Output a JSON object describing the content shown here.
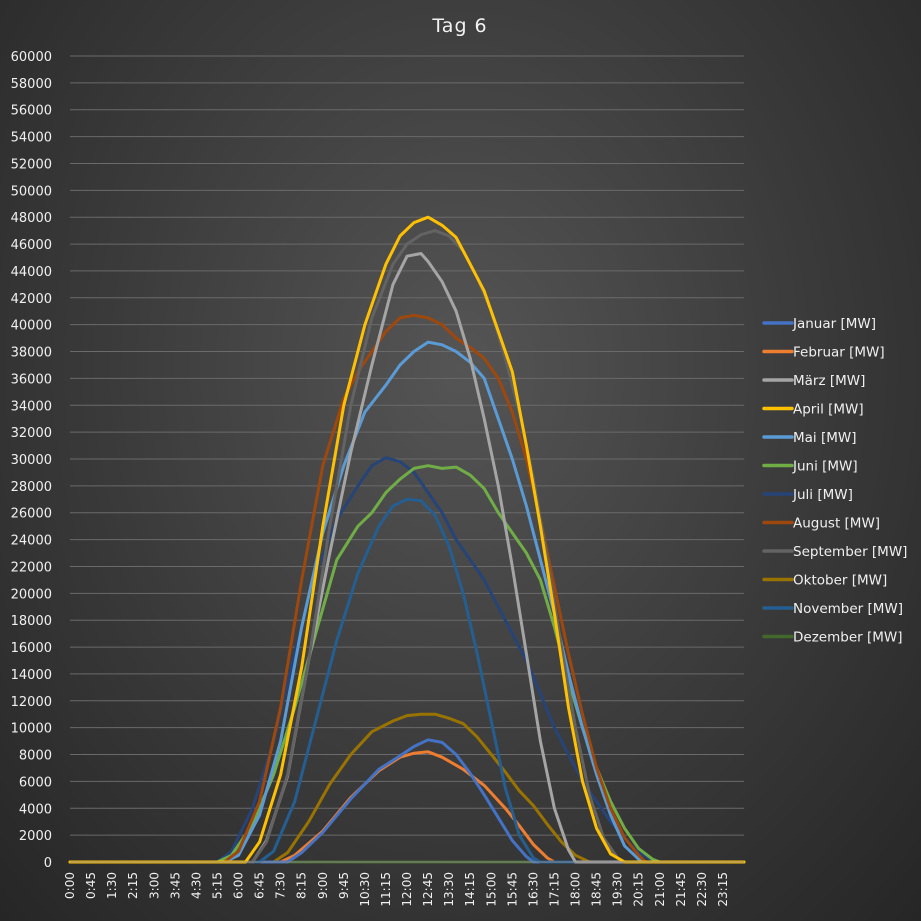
{
  "chart_data": {
    "type": "line",
    "title": "Tag 6",
    "xlabel": "",
    "ylabel": "",
    "ylim": [
      0,
      60000
    ],
    "yticks": [
      0,
      2000,
      4000,
      6000,
      8000,
      10000,
      12000,
      14000,
      16000,
      18000,
      20000,
      22000,
      24000,
      26000,
      28000,
      30000,
      32000,
      34000,
      36000,
      38000,
      40000,
      42000,
      44000,
      46000,
      48000,
      50000,
      52000,
      54000,
      56000,
      58000,
      60000
    ],
    "xtick_labels": [
      "0:00",
      "0:45",
      "1:30",
      "2:15",
      "3:00",
      "3:45",
      "4:30",
      "5:15",
      "6:00",
      "6:45",
      "7:30",
      "8:15",
      "9:00",
      "9:45",
      "10:30",
      "11:15",
      "12:00",
      "12:45",
      "13:30",
      "14:15",
      "15:00",
      "15:45",
      "16:30",
      "17:15",
      "18:00",
      "18:45",
      "19:30",
      "20:15",
      "21:00",
      "21:45",
      "22:30",
      "23:15"
    ],
    "x_hours_range": [
      0,
      24
    ],
    "grid": true,
    "legend_position": "right",
    "series": [
      {
        "name": "Januar [MW]",
        "color": "#4472c4",
        "points": [
          [
            0,
            0
          ],
          [
            7.75,
            0
          ],
          [
            8.25,
            700
          ],
          [
            9,
            2200
          ],
          [
            10,
            4700
          ],
          [
            11,
            6900
          ],
          [
            11.75,
            7900
          ],
          [
            12.25,
            8600
          ],
          [
            12.75,
            9100
          ],
          [
            13.25,
            8900
          ],
          [
            13.75,
            8000
          ],
          [
            14.25,
            6600
          ],
          [
            14.75,
            5000
          ],
          [
            15.25,
            3300
          ],
          [
            15.75,
            1600
          ],
          [
            16.25,
            400
          ],
          [
            16.5,
            0
          ],
          [
            24,
            0
          ]
        ]
      },
      {
        "name": "Februar [MW]",
        "color": "#ed7d31",
        "points": [
          [
            0,
            0
          ],
          [
            7.5,
            0
          ],
          [
            8,
            500
          ],
          [
            9,
            2300
          ],
          [
            10,
            4800
          ],
          [
            11,
            6800
          ],
          [
            11.75,
            7800
          ],
          [
            12.25,
            8100
          ],
          [
            12.75,
            8200
          ],
          [
            13.25,
            7800
          ],
          [
            14,
            6900
          ],
          [
            14.75,
            5700
          ],
          [
            15.5,
            4000
          ],
          [
            16,
            2700
          ],
          [
            16.5,
            1300
          ],
          [
            17,
            300
          ],
          [
            17.25,
            0
          ],
          [
            24,
            0
          ]
        ]
      },
      {
        "name": "März [MW]",
        "color": "#a5a5a5",
        "points": [
          [
            0,
            0
          ],
          [
            6.5,
            0
          ],
          [
            7,
            1600
          ],
          [
            7.75,
            6400
          ],
          [
            8.5,
            15000
          ],
          [
            9.25,
            23000
          ],
          [
            10,
            30500
          ],
          [
            10.75,
            37000
          ],
          [
            11.5,
            43000
          ],
          [
            12,
            45100
          ],
          [
            12.5,
            45300
          ],
          [
            12.75,
            44700
          ],
          [
            13.25,
            43200
          ],
          [
            13.75,
            41000
          ],
          [
            14.25,
            37500
          ],
          [
            14.75,
            33000
          ],
          [
            15.25,
            28000
          ],
          [
            15.75,
            22000
          ],
          [
            16.25,
            15500
          ],
          [
            16.75,
            9000
          ],
          [
            17.25,
            4000
          ],
          [
            17.75,
            900
          ],
          [
            18,
            0
          ],
          [
            24,
            0
          ]
        ]
      },
      {
        "name": "April [MW]",
        "color": "#ffc000",
        "points": [
          [
            0,
            0
          ],
          [
            6.25,
            0
          ],
          [
            6.75,
            1500
          ],
          [
            7.5,
            6500
          ],
          [
            8.25,
            14500
          ],
          [
            9,
            25000
          ],
          [
            9.75,
            34000
          ],
          [
            10.5,
            40000
          ],
          [
            11.25,
            44500
          ],
          [
            11.75,
            46600
          ],
          [
            12.25,
            47600
          ],
          [
            12.75,
            48000
          ],
          [
            13.25,
            47400
          ],
          [
            13.75,
            46500
          ],
          [
            14.25,
            44500
          ],
          [
            14.75,
            42500
          ],
          [
            15.25,
            39500
          ],
          [
            15.75,
            36500
          ],
          [
            16.25,
            31000
          ],
          [
            16.75,
            25000
          ],
          [
            17.25,
            18500
          ],
          [
            17.75,
            11500
          ],
          [
            18.25,
            6000
          ],
          [
            18.75,
            2500
          ],
          [
            19.25,
            600
          ],
          [
            19.75,
            0
          ],
          [
            24,
            0
          ]
        ]
      },
      {
        "name": "Mai [MW]",
        "color": "#5b9bd5",
        "points": [
          [
            0,
            0
          ],
          [
            5.5,
            0
          ],
          [
            6,
            500
          ],
          [
            6.75,
            3500
          ],
          [
            7.5,
            9000
          ],
          [
            8.25,
            17500
          ],
          [
            9,
            24500
          ],
          [
            9.75,
            29500
          ],
          [
            10.5,
            33500
          ],
          [
            11.25,
            35500
          ],
          [
            11.75,
            37000
          ],
          [
            12.25,
            38000
          ],
          [
            12.75,
            38700
          ],
          [
            13.25,
            38500
          ],
          [
            13.75,
            38000
          ],
          [
            14.25,
            37200
          ],
          [
            14.75,
            36000
          ],
          [
            15.25,
            33000
          ],
          [
            15.75,
            30000
          ],
          [
            16.25,
            26500
          ],
          [
            16.75,
            22500
          ],
          [
            17.25,
            18500
          ],
          [
            17.75,
            14000
          ],
          [
            18.25,
            10000
          ],
          [
            18.75,
            6500
          ],
          [
            19.25,
            3500
          ],
          [
            19.75,
            1200
          ],
          [
            20.25,
            200
          ],
          [
            20.5,
            0
          ],
          [
            24,
            0
          ]
        ]
      },
      {
        "name": "Juni [MW]",
        "color": "#70ad47",
        "points": [
          [
            0,
            0
          ],
          [
            5.25,
            0
          ],
          [
            5.75,
            500
          ],
          [
            6.5,
            2800
          ],
          [
            7.25,
            6500
          ],
          [
            8,
            11500
          ],
          [
            8.75,
            17000
          ],
          [
            9.5,
            22500
          ],
          [
            10.25,
            25000
          ],
          [
            10.75,
            26000
          ],
          [
            11.25,
            27500
          ],
          [
            11.75,
            28500
          ],
          [
            12.25,
            29300
          ],
          [
            12.75,
            29500
          ],
          [
            13.25,
            29300
          ],
          [
            13.75,
            29400
          ],
          [
            14.25,
            28800
          ],
          [
            14.75,
            27800
          ],
          [
            15.25,
            26000
          ],
          [
            15.75,
            24500
          ],
          [
            16.25,
            23000
          ],
          [
            16.75,
            21000
          ],
          [
            17.25,
            17500
          ],
          [
            17.75,
            13500
          ],
          [
            18.25,
            10000
          ],
          [
            18.75,
            7000
          ],
          [
            19.25,
            4500
          ],
          [
            19.75,
            2500
          ],
          [
            20.25,
            1000
          ],
          [
            20.75,
            200
          ],
          [
            21,
            0
          ],
          [
            24,
            0
          ]
        ]
      },
      {
        "name": "Juli [MW]",
        "color": "#264478",
        "points": [
          [
            0,
            0
          ],
          [
            5.25,
            0
          ],
          [
            5.75,
            800
          ],
          [
            6.5,
            4000
          ],
          [
            7.25,
            9000
          ],
          [
            8,
            15500
          ],
          [
            8.75,
            21500
          ],
          [
            9.5,
            25500
          ],
          [
            10.25,
            28000
          ],
          [
            10.75,
            29500
          ],
          [
            11.25,
            30100
          ],
          [
            11.75,
            29800
          ],
          [
            12.25,
            29000
          ],
          [
            12.75,
            27500
          ],
          [
            13.25,
            26000
          ],
          [
            13.75,
            24000
          ],
          [
            14.25,
            22500
          ],
          [
            14.75,
            21000
          ],
          [
            15.25,
            19000
          ],
          [
            15.75,
            17000
          ],
          [
            16.25,
            15000
          ],
          [
            16.75,
            12500
          ],
          [
            17.25,
            10000
          ],
          [
            17.75,
            8000
          ],
          [
            18.25,
            6000
          ],
          [
            18.75,
            4500
          ],
          [
            19.25,
            3000
          ],
          [
            19.75,
            1800
          ],
          [
            20.25,
            700
          ],
          [
            20.75,
            100
          ],
          [
            21,
            0
          ],
          [
            24,
            0
          ]
        ]
      },
      {
        "name": "August [MW]",
        "color": "#9e480e",
        "points": [
          [
            0,
            0
          ],
          [
            5.5,
            0
          ],
          [
            6,
            800
          ],
          [
            6.75,
            4500
          ],
          [
            7.5,
            11500
          ],
          [
            8.25,
            21000
          ],
          [
            9,
            29500
          ],
          [
            9.75,
            34500
          ],
          [
            10.25,
            36500
          ],
          [
            10.75,
            38000
          ],
          [
            11.25,
            39500
          ],
          [
            11.75,
            40500
          ],
          [
            12.25,
            40700
          ],
          [
            12.75,
            40500
          ],
          [
            13.25,
            40000
          ],
          [
            13.75,
            39000
          ],
          [
            14.25,
            38300
          ],
          [
            14.75,
            37500
          ],
          [
            15.25,
            36000
          ],
          [
            15.75,
            33500
          ],
          [
            16.25,
            30000
          ],
          [
            16.75,
            25500
          ],
          [
            17.25,
            20500
          ],
          [
            17.75,
            15500
          ],
          [
            18.25,
            11000
          ],
          [
            18.75,
            7000
          ],
          [
            19.25,
            4000
          ],
          [
            19.75,
            1800
          ],
          [
            20.25,
            500
          ],
          [
            20.5,
            0
          ],
          [
            24,
            0
          ]
        ]
      },
      {
        "name": "September [MW]",
        "color": "#636363",
        "points": [
          [
            0,
            0
          ],
          [
            6.5,
            0
          ],
          [
            7,
            1500
          ],
          [
            7.75,
            6500
          ],
          [
            8.5,
            15000
          ],
          [
            9.25,
            25000
          ],
          [
            10,
            34000
          ],
          [
            10.75,
            40500
          ],
          [
            11.5,
            44500
          ],
          [
            12,
            46000
          ],
          [
            12.5,
            46700
          ],
          [
            13,
            47000
          ],
          [
            13.5,
            46600
          ],
          [
            14,
            45500
          ],
          [
            14.5,
            43500
          ],
          [
            15,
            41000
          ],
          [
            15.5,
            37500
          ],
          [
            16,
            33500
          ],
          [
            16.5,
            28500
          ],
          [
            17,
            22500
          ],
          [
            17.5,
            16000
          ],
          [
            18,
            10000
          ],
          [
            18.5,
            5000
          ],
          [
            19,
            1800
          ],
          [
            19.5,
            300
          ],
          [
            19.75,
            0
          ],
          [
            24,
            0
          ]
        ]
      },
      {
        "name": "Oktober [MW]",
        "color": "#997300",
        "points": [
          [
            0,
            0
          ],
          [
            7.25,
            0
          ],
          [
            7.75,
            700
          ],
          [
            8.5,
            3000
          ],
          [
            9.25,
            5800
          ],
          [
            10,
            8000
          ],
          [
            10.75,
            9700
          ],
          [
            11.5,
            10500
          ],
          [
            12,
            10900
          ],
          [
            12.5,
            11000
          ],
          [
            13,
            11000
          ],
          [
            13.5,
            10700
          ],
          [
            14,
            10300
          ],
          [
            14.5,
            9300
          ],
          [
            15,
            8000
          ],
          [
            15.5,
            6700
          ],
          [
            16,
            5300
          ],
          [
            16.5,
            4200
          ],
          [
            17,
            2800
          ],
          [
            17.5,
            1500
          ],
          [
            18,
            500
          ],
          [
            18.5,
            0
          ],
          [
            24,
            0
          ]
        ]
      },
      {
        "name": "November [MW]",
        "color": "#255e91",
        "points": [
          [
            0,
            0
          ],
          [
            6.75,
            0
          ],
          [
            7.25,
            800
          ],
          [
            8,
            4500
          ],
          [
            8.75,
            10500
          ],
          [
            9.5,
            16500
          ],
          [
            10.25,
            21500
          ],
          [
            11,
            25000
          ],
          [
            11.5,
            26500
          ],
          [
            12,
            27000
          ],
          [
            12.5,
            26900
          ],
          [
            13,
            25800
          ],
          [
            13.5,
            23500
          ],
          [
            14,
            20000
          ],
          [
            14.5,
            15500
          ],
          [
            15,
            10500
          ],
          [
            15.5,
            5500
          ],
          [
            16,
            2000
          ],
          [
            16.5,
            300
          ],
          [
            16.75,
            0
          ],
          [
            24,
            0
          ]
        ]
      },
      {
        "name": "Dezember [MW]",
        "color": "#43682b",
        "points": [
          [
            0,
            0
          ],
          [
            24,
            0
          ]
        ]
      }
    ]
  }
}
